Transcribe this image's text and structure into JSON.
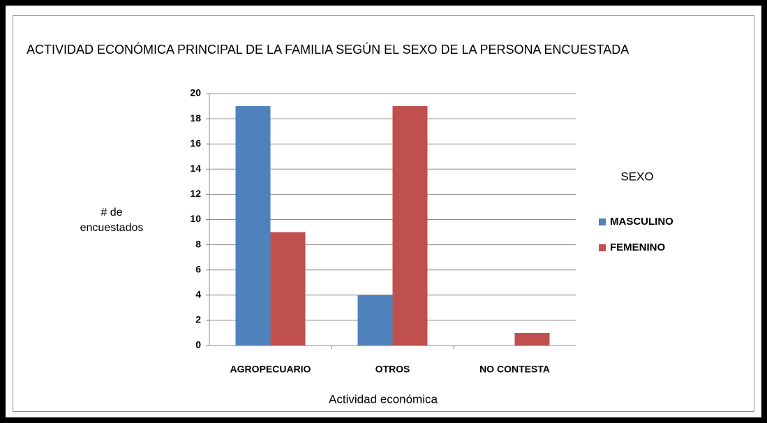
{
  "chart_data": {
    "type": "bar",
    "title": "ACTIVIDAD ECONÓMICA PRINCIPAL DE LA FAMILIA SEGÚN EL SEXO DE LA PERSONA ENCUESTADA",
    "x_label": "Actividad económica",
    "y_label": "# de encuestados",
    "categories": [
      "AGROPECUARIO",
      "OTROS",
      "NO CONTESTA"
    ],
    "series": [
      {
        "name": "MASCULINO",
        "color": "#4f81bd",
        "values": [
          19,
          4,
          0
        ]
      },
      {
        "name": "FEMENINO",
        "color": "#c0504d",
        "values": [
          9,
          19,
          1
        ]
      }
    ],
    "legend_title": "SEXO",
    "legend_position": "right",
    "ylim": [
      0,
      20
    ],
    "yticks": [
      0,
      2,
      4,
      6,
      8,
      10,
      12,
      14,
      16,
      18,
      20
    ],
    "grid": true
  }
}
